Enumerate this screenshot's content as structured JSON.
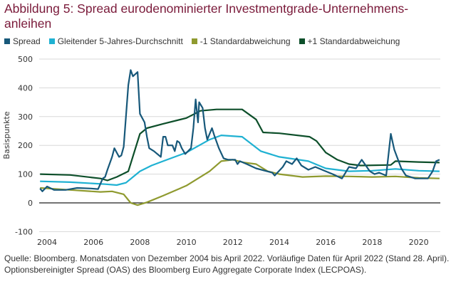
{
  "title": "Abbildung 5: Spread eurodenominierter Investmentgrade-Unternehmens-anleihen",
  "footnote": "Quelle: Bloomberg. Monatsdaten von Dezember 2004 bis April 2022. Vorläufige Daten für April 2022 (Stand 28. April). Optionsbereinigter Spread (OAS) des Bloomberg Euro Aggregate Corporate Index (LECPOAS).",
  "chart_data": {
    "type": "line",
    "title": "Abbildung 5: Spread eurodenominierter Investmentgrade-Unternehmens-anleihen",
    "xlabel": "",
    "ylabel": "Basispunkte",
    "xlim": [
      2003.65,
      2020.95
    ],
    "ylim": [
      -100,
      500
    ],
    "xticks": [
      "2004",
      "2006",
      "2008",
      "2010",
      "2012",
      "2014",
      "2016",
      "2018",
      "2020"
    ],
    "yticks": [
      "-100",
      "0",
      "100",
      "200",
      "300",
      "400",
      "500"
    ],
    "grid": true,
    "legend": "top",
    "series": [
      {
        "name": "Spread",
        "color": "#17587a",
        "points": [
          [
            2003.7,
            50
          ],
          [
            2003.8,
            40
          ],
          [
            2004.0,
            57
          ],
          [
            2004.3,
            45
          ],
          [
            2004.8,
            45
          ],
          [
            2005.3,
            52
          ],
          [
            2005.9,
            50
          ],
          [
            2006.2,
            48
          ],
          [
            2006.4,
            85
          ],
          [
            2006.5,
            90
          ],
          [
            2006.6,
            115
          ],
          [
            2006.8,
            160
          ],
          [
            2006.9,
            190
          ],
          [
            2007.1,
            160
          ],
          [
            2007.2,
            165
          ],
          [
            2007.3,
            195
          ],
          [
            2007.5,
            410
          ],
          [
            2007.6,
            462
          ],
          [
            2007.7,
            440
          ],
          [
            2007.9,
            455
          ],
          [
            2008.0,
            310
          ],
          [
            2008.2,
            280
          ],
          [
            2008.3,
            230
          ],
          [
            2008.4,
            190
          ],
          [
            2008.6,
            180
          ],
          [
            2008.9,
            160
          ],
          [
            2009.0,
            230
          ],
          [
            2009.1,
            230
          ],
          [
            2009.2,
            200
          ],
          [
            2009.4,
            200
          ],
          [
            2009.5,
            180
          ],
          [
            2009.6,
            215
          ],
          [
            2009.7,
            210
          ],
          [
            2009.8,
            190
          ],
          [
            2009.95,
            170
          ],
          [
            2010.2,
            190
          ],
          [
            2010.3,
            260
          ],
          [
            2010.4,
            360
          ],
          [
            2010.5,
            280
          ],
          [
            2010.55,
            350
          ],
          [
            2010.7,
            330
          ],
          [
            2010.8,
            260
          ],
          [
            2010.9,
            220
          ],
          [
            2011.1,
            260
          ],
          [
            2011.2,
            235
          ],
          [
            2011.4,
            190
          ],
          [
            2011.6,
            155
          ],
          [
            2011.8,
            150
          ],
          [
            2012.1,
            150
          ],
          [
            2012.2,
            135
          ],
          [
            2012.3,
            145
          ],
          [
            2012.6,
            135
          ],
          [
            2013.0,
            120
          ],
          [
            2013.7,
            105
          ],
          [
            2013.8,
            95
          ],
          [
            2014.15,
            125
          ],
          [
            2014.3,
            145
          ],
          [
            2014.55,
            135
          ],
          [
            2014.75,
            155
          ],
          [
            2014.95,
            130
          ],
          [
            2015.25,
            115
          ],
          [
            2015.55,
            125
          ],
          [
            2016.0,
            110
          ],
          [
            2016.3,
            100
          ],
          [
            2016.7,
            85
          ],
          [
            2017.0,
            125
          ],
          [
            2017.3,
            120
          ],
          [
            2017.55,
            150
          ],
          [
            2017.9,
            110
          ],
          [
            2018.1,
            100
          ],
          [
            2018.3,
            105
          ],
          [
            2018.6,
            95
          ],
          [
            2018.8,
            240
          ],
          [
            2018.95,
            185
          ],
          [
            2019.25,
            120
          ],
          [
            2019.45,
            95
          ],
          [
            2019.85,
            85
          ],
          [
            2020.4,
            85
          ],
          [
            2020.6,
            110
          ],
          [
            2020.75,
            145
          ],
          [
            2020.9,
            150
          ]
        ]
      },
      {
        "name": "Gleitender 5-Jahres-Durchschnitt",
        "color": "#1fb1d2",
        "points": [
          [
            2003.7,
            75
          ],
          [
            2005.0,
            72
          ],
          [
            2006.5,
            65
          ],
          [
            2007.0,
            62
          ],
          [
            2007.4,
            70
          ],
          [
            2008.0,
            110
          ],
          [
            2008.5,
            130
          ],
          [
            2009.0,
            145
          ],
          [
            2010.0,
            175
          ],
          [
            2011.0,
            220
          ],
          [
            2011.5,
            235
          ],
          [
            2012.4,
            230
          ],
          [
            2013.2,
            180
          ],
          [
            2014.0,
            160
          ],
          [
            2015.25,
            145
          ],
          [
            2016.0,
            120
          ],
          [
            2017.0,
            110
          ],
          [
            2018.0,
            112
          ],
          [
            2019.0,
            118
          ],
          [
            2020.0,
            112
          ],
          [
            2020.9,
            110
          ]
        ]
      },
      {
        "name": "-1 Standardabweichung",
        "color": "#8f9a2f",
        "points": [
          [
            2003.7,
            52
          ],
          [
            2005.0,
            45
          ],
          [
            2006.3,
            38
          ],
          [
            2006.8,
            40
          ],
          [
            2007.3,
            30
          ],
          [
            2007.6,
            0
          ],
          [
            2007.9,
            -8
          ],
          [
            2008.3,
            2
          ],
          [
            2009.0,
            25
          ],
          [
            2010.0,
            60
          ],
          [
            2011.0,
            110
          ],
          [
            2011.5,
            145
          ],
          [
            2012.0,
            150
          ],
          [
            2012.5,
            140
          ],
          [
            2013.0,
            135
          ],
          [
            2013.5,
            110
          ],
          [
            2014.0,
            100
          ],
          [
            2015.0,
            90
          ],
          [
            2016.0,
            93
          ],
          [
            2017.0,
            92
          ],
          [
            2018.0,
            90
          ],
          [
            2019.0,
            92
          ],
          [
            2020.0,
            87
          ],
          [
            2020.9,
            85
          ]
        ]
      },
      {
        "name": "+1 Standardabweichung",
        "color": "#0d4f2a",
        "points": [
          [
            2003.7,
            100
          ],
          [
            2005.0,
            97
          ],
          [
            2006.3,
            85
          ],
          [
            2006.6,
            78
          ],
          [
            2007.0,
            90
          ],
          [
            2007.5,
            110
          ],
          [
            2008.0,
            240
          ],
          [
            2008.3,
            260
          ],
          [
            2009.0,
            275
          ],
          [
            2010.0,
            295
          ],
          [
            2010.6,
            320
          ],
          [
            2011.3,
            325
          ],
          [
            2012.4,
            325
          ],
          [
            2013.0,
            290
          ],
          [
            2013.3,
            245
          ],
          [
            2014.0,
            242
          ],
          [
            2015.3,
            230
          ],
          [
            2015.6,
            215
          ],
          [
            2016.0,
            175
          ],
          [
            2016.5,
            150
          ],
          [
            2017.0,
            135
          ],
          [
            2017.5,
            130
          ],
          [
            2018.8,
            132
          ],
          [
            2019.0,
            145
          ],
          [
            2020.0,
            142
          ],
          [
            2020.9,
            140
          ]
        ]
      }
    ]
  }
}
